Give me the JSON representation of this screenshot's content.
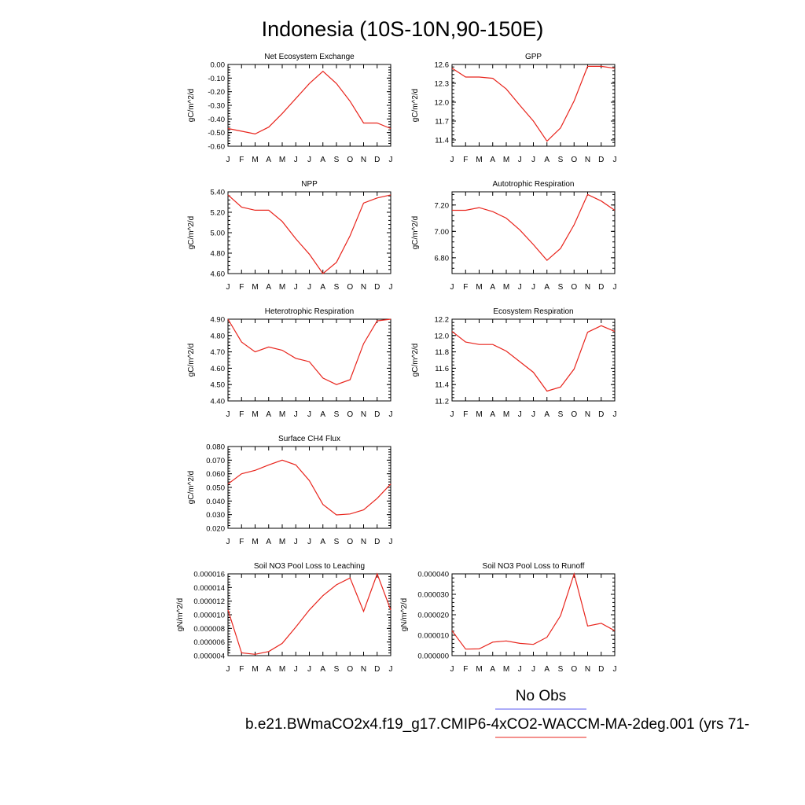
{
  "page_title": "Indonesia (10S-10N,90-150E)",
  "legend": {
    "obs_label": "No Obs",
    "obs_color": "#5a5af0",
    "model_label": "b.e21.BWmaCO2x4.f19_g17.CMIP6-4xCO2-WACCM-MA-2deg.001 (yrs 71-",
    "model_color": "#e8241c"
  },
  "line_color": "#e8241c",
  "months": [
    "J",
    "F",
    "M",
    "A",
    "M",
    "J",
    "J",
    "A",
    "S",
    "O",
    "N",
    "D",
    "J"
  ],
  "chart_data": [
    {
      "type": "line",
      "title": "Net Ecosystem Exchange",
      "ylabel": "gC/m^2/d",
      "ylim": [
        -0.6,
        0.0
      ],
      "yticks": [
        "0.00",
        "-0.10",
        "-0.20",
        "-0.30",
        "-0.40",
        "-0.50",
        "-0.60"
      ],
      "ytick_values": [
        0.0,
        -0.1,
        -0.2,
        -0.3,
        -0.4,
        -0.5,
        -0.6
      ],
      "x": [
        "J",
        "F",
        "M",
        "A",
        "M",
        "J",
        "J",
        "A",
        "S",
        "O",
        "N",
        "D",
        "J"
      ],
      "values": [
        -0.47,
        -0.49,
        -0.51,
        -0.46,
        -0.36,
        -0.25,
        -0.14,
        -0.05,
        -0.14,
        -0.27,
        -0.43,
        -0.43,
        -0.47
      ]
    },
    {
      "type": "line",
      "title": "GPP",
      "ylabel": "gC/m^2/d",
      "ylim": [
        11.3,
        12.6
      ],
      "yticks": [
        "12.6",
        "12.3",
        "12.0",
        "11.7",
        "11.4"
      ],
      "ytick_values": [
        12.6,
        12.3,
        12.0,
        11.7,
        11.4
      ],
      "x": [
        "J",
        "F",
        "M",
        "A",
        "M",
        "J",
        "J",
        "A",
        "S",
        "O",
        "N",
        "D",
        "J"
      ],
      "values": [
        12.54,
        12.4,
        12.4,
        12.38,
        12.21,
        11.95,
        11.7,
        11.38,
        11.59,
        12.02,
        12.57,
        12.57,
        12.54
      ]
    },
    {
      "type": "line",
      "title": "NPP",
      "ylabel": "gC/m^2/d",
      "ylim": [
        4.6,
        5.4
      ],
      "yticks": [
        "5.40",
        "5.20",
        "5.00",
        "4.80",
        "4.60"
      ],
      "ytick_values": [
        5.4,
        5.2,
        5.0,
        4.8,
        4.6
      ],
      "x": [
        "J",
        "F",
        "M",
        "A",
        "M",
        "J",
        "J",
        "A",
        "S",
        "O",
        "N",
        "D",
        "J"
      ],
      "values": [
        5.37,
        5.25,
        5.22,
        5.22,
        5.11,
        4.94,
        4.79,
        4.6,
        4.71,
        4.97,
        5.29,
        5.34,
        5.37
      ]
    },
    {
      "type": "line",
      "title": "Autotrophic Respiration",
      "ylabel": "gC/m^2/d",
      "ylim": [
        6.68,
        7.3
      ],
      "yticks": [
        "7.20",
        "7.00",
        "6.80"
      ],
      "ytick_values": [
        7.2,
        7.0,
        6.8
      ],
      "x": [
        "J",
        "F",
        "M",
        "A",
        "M",
        "J",
        "J",
        "A",
        "S",
        "O",
        "N",
        "D",
        "J"
      ],
      "values": [
        7.16,
        7.16,
        7.18,
        7.15,
        7.1,
        7.01,
        6.9,
        6.78,
        6.87,
        7.05,
        7.28,
        7.23,
        7.16
      ]
    },
    {
      "type": "line",
      "title": "Heterotrophic Respiration",
      "ylabel": "gC/m^2/d",
      "ylim": [
        4.4,
        4.9
      ],
      "yticks": [
        "4.90",
        "4.80",
        "4.70",
        "4.60",
        "4.50",
        "4.40"
      ],
      "ytick_values": [
        4.9,
        4.8,
        4.7,
        4.6,
        4.5,
        4.4
      ],
      "x": [
        "J",
        "F",
        "M",
        "A",
        "M",
        "J",
        "J",
        "A",
        "S",
        "O",
        "N",
        "D",
        "J"
      ],
      "values": [
        4.9,
        4.76,
        4.7,
        4.73,
        4.71,
        4.66,
        4.64,
        4.54,
        4.5,
        4.53,
        4.75,
        4.89,
        4.9
      ]
    },
    {
      "type": "line",
      "title": "Ecosystem Respiration",
      "ylabel": "gC/m^2/d",
      "ylim": [
        11.2,
        12.2
      ],
      "yticks": [
        "12.2",
        "12.0",
        "11.8",
        "11.6",
        "11.4",
        "11.2"
      ],
      "ytick_values": [
        12.2,
        12.0,
        11.8,
        11.6,
        11.4,
        11.2
      ],
      "x": [
        "J",
        "F",
        "M",
        "A",
        "M",
        "J",
        "J",
        "A",
        "S",
        "O",
        "N",
        "D",
        "J"
      ],
      "values": [
        12.05,
        11.92,
        11.89,
        11.89,
        11.81,
        11.68,
        11.55,
        11.32,
        11.37,
        11.59,
        12.04,
        12.12,
        12.05
      ]
    },
    {
      "type": "line",
      "title": "Surface CH4 Flux",
      "ylabel": "gC/m^2/d",
      "ylim": [
        0.02,
        0.08
      ],
      "yticks": [
        "0.080",
        "0.070",
        "0.060",
        "0.050",
        "0.040",
        "0.030",
        "0.020"
      ],
      "ytick_values": [
        0.08,
        0.07,
        0.06,
        0.05,
        0.04,
        0.03,
        0.02
      ],
      "x": [
        "J",
        "F",
        "M",
        "A",
        "M",
        "J",
        "J",
        "A",
        "S",
        "O",
        "N",
        "D",
        "J"
      ],
      "values": [
        0.0525,
        0.06,
        0.0625,
        0.0665,
        0.07,
        0.0665,
        0.055,
        0.0375,
        0.0298,
        0.0305,
        0.0335,
        0.042,
        0.0525
      ]
    },
    {
      "type": "line",
      "title": "Soil NO3 Pool Loss to Leaching",
      "ylabel": "gN/m^2/d",
      "ylim": [
        4e-06,
        1.6e-05
      ],
      "yticks": [
        "0.000016",
        "0.000014",
        "0.000012",
        "0.000010",
        "0.000008",
        "0.000006",
        "0.000004"
      ],
      "ytick_values": [
        1.6e-05,
        1.4e-05,
        1.2e-05,
        1e-05,
        8e-06,
        6e-06,
        4e-06
      ],
      "x": [
        "J",
        "F",
        "M",
        "A",
        "M",
        "J",
        "J",
        "A",
        "S",
        "O",
        "N",
        "D",
        "J"
      ],
      "values": [
        1.07e-05,
        4.4e-06,
        4.2e-06,
        4.6e-06,
        5.8e-06,
        8.2e-06,
        1.07e-05,
        1.28e-05,
        1.44e-05,
        1.54e-05,
        1.05e-05,
        1.6e-05,
        1.07e-05
      ]
    },
    {
      "type": "line",
      "title": "Soil NO3 Pool Loss to Runoff",
      "ylabel": "gN/m^2/d",
      "ylim": [
        0.0,
        4e-05
      ],
      "yticks": [
        "0.000040",
        "0.000030",
        "0.000020",
        "0.000010",
        "0.000000"
      ],
      "ytick_values": [
        4e-05,
        3e-05,
        2e-05,
        1e-05,
        0.0
      ],
      "x": [
        "J",
        "F",
        "M",
        "A",
        "M",
        "J",
        "J",
        "A",
        "S",
        "O",
        "N",
        "D",
        "J"
      ],
      "values": [
        1.22e-05,
        3.2e-06,
        3.3e-06,
        6.6e-06,
        7.2e-06,
        6e-06,
        5.5e-06,
        9e-06,
        1.95e-05,
        4e-05,
        1.45e-05,
        1.58e-05,
        1.22e-05
      ]
    }
  ]
}
